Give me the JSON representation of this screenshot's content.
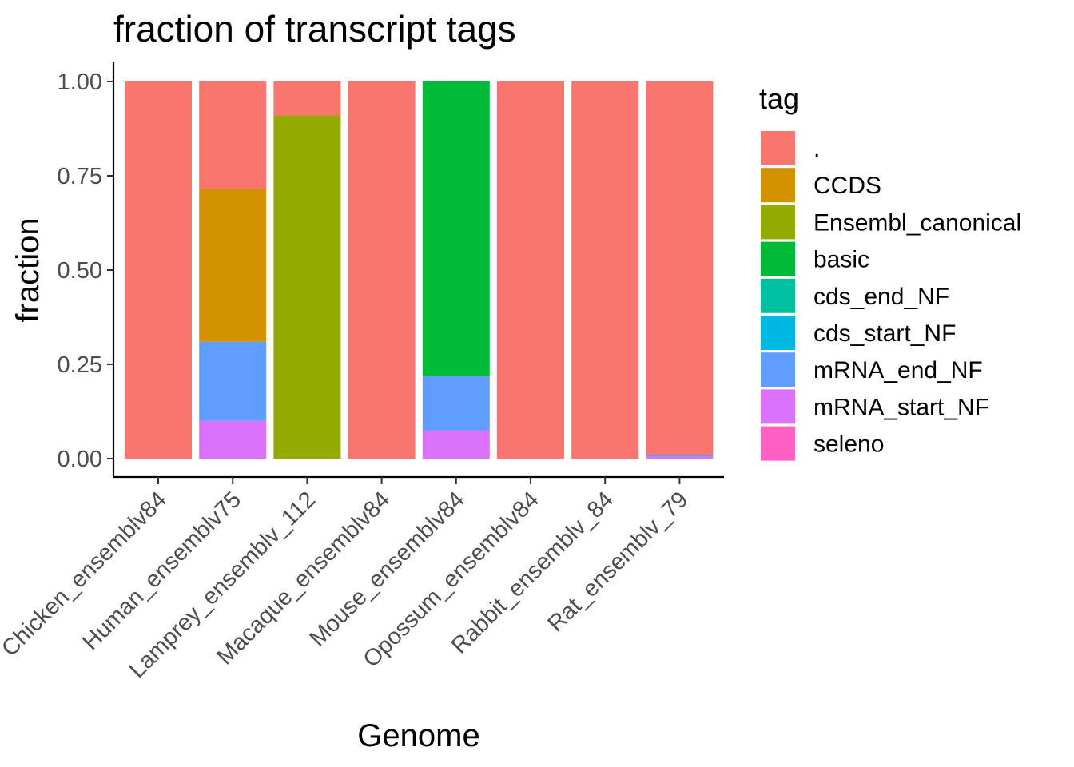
{
  "chart_data": {
    "type": "bar",
    "stacked": true,
    "title": "fraction of transcript tags",
    "xlabel": "Genome",
    "ylabel": "fraction",
    "ylim": [
      0,
      1
    ],
    "yticks": [
      "0.00",
      "0.25",
      "0.50",
      "0.75",
      "1.00"
    ],
    "ytick_values": [
      0,
      0.25,
      0.5,
      0.75,
      1.0
    ],
    "grid": false,
    "legend_placement": "right",
    "legend_title": "tag",
    "categories": [
      "Chicken_ensemblv84",
      "Human_ensemblv75",
      "Lamprey_ensemblv_112",
      "Macaque_ensemblv84",
      "Mouse_ensemblv84",
      "Opossum_ensemblv84",
      "Rabbit_ensemblv_84",
      "Rat_ensemblv_79"
    ],
    "series": [
      {
        "name": ".",
        "color": "#F8766D",
        "values": [
          1.0,
          0.285,
          0.09,
          1.0,
          0.0,
          1.0,
          1.0,
          0.99
        ]
      },
      {
        "name": "CCDS",
        "color": "#D39200",
        "values": [
          0,
          0.405,
          0,
          0,
          0,
          0,
          0,
          0
        ]
      },
      {
        "name": "Ensembl_canonical",
        "color": "#93AA00",
        "values": [
          0,
          0,
          0.91,
          0,
          0,
          0,
          0,
          0
        ]
      },
      {
        "name": "basic",
        "color": "#00BA38",
        "values": [
          0,
          0,
          0,
          0,
          0.78,
          0,
          0,
          0
        ]
      },
      {
        "name": "cds_end_NF",
        "color": "#00C19F",
        "values": [
          0,
          0,
          0,
          0,
          0,
          0,
          0,
          0
        ]
      },
      {
        "name": "cds_start_NF",
        "color": "#00B9E3",
        "values": [
          0,
          0,
          0,
          0,
          0,
          0,
          0,
          0
        ]
      },
      {
        "name": "mRNA_end_NF",
        "color": "#619CFF",
        "values": [
          0,
          0.21,
          0,
          0,
          0.145,
          0,
          0,
          0.005
        ]
      },
      {
        "name": "mRNA_start_NF",
        "color": "#DB72FB",
        "values": [
          0,
          0.1,
          0,
          0,
          0.075,
          0,
          0,
          0.005
        ]
      },
      {
        "name": "seleno",
        "color": "#FF61C3",
        "values": [
          0,
          0,
          0,
          0,
          0,
          0,
          0,
          0
        ]
      }
    ]
  }
}
